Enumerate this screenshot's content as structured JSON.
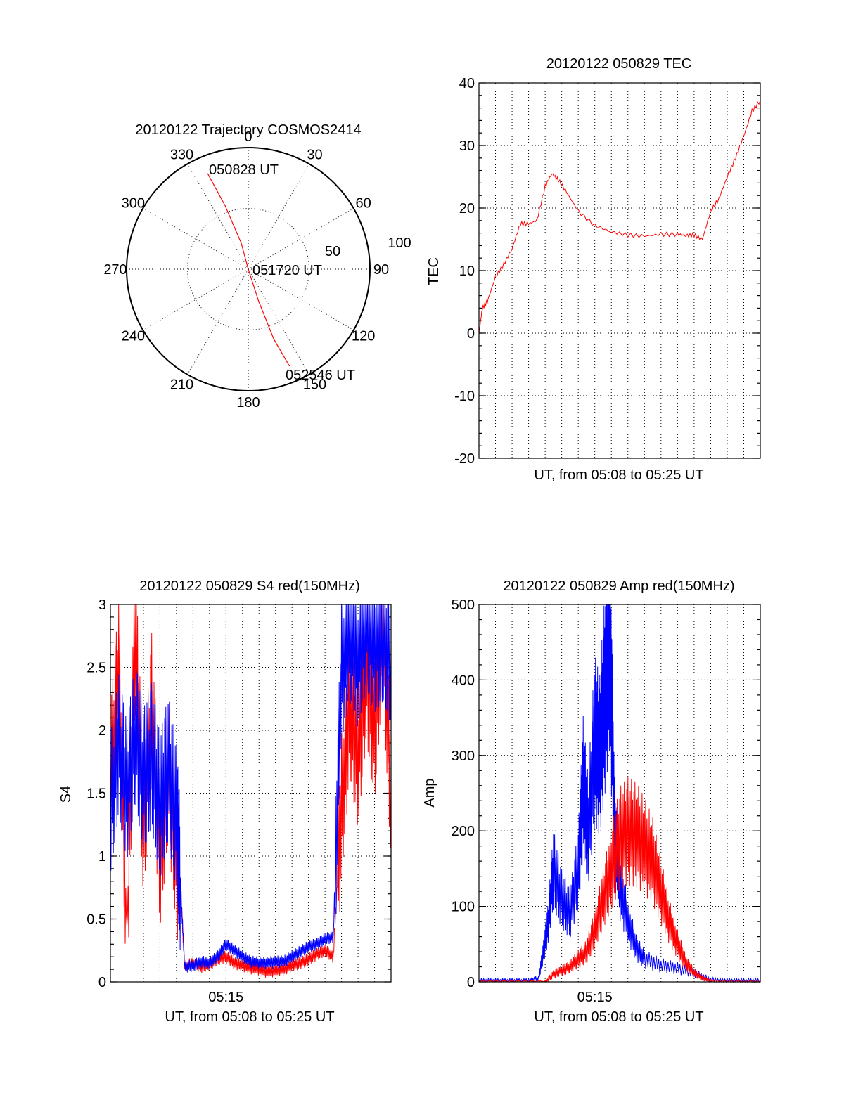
{
  "colors": {
    "red": "#ff0000",
    "blue": "#0000ff",
    "black": "#000000"
  },
  "chart_data": [
    {
      "id": "polar",
      "type": "scatter",
      "title": "20120122 Trajectory COSMOS2414",
      "azimuth_labels": [
        "0",
        "30",
        "60",
        "90",
        "120",
        "150",
        "180",
        "210",
        "240",
        "270",
        "300",
        "330"
      ],
      "radial_labels": [
        "50",
        "100"
      ],
      "track": [
        {
          "az": 337,
          "el": 13
        },
        {
          "az": 340,
          "el": 40
        },
        {
          "az": 345,
          "el": 70
        },
        {
          "az": 160,
          "el": 90
        },
        {
          "az": 162,
          "el": 65
        },
        {
          "az": 160,
          "el": 35
        },
        {
          "az": 157,
          "el": 12
        }
      ],
      "annotations": [
        {
          "text": "050828 UT",
          "at": "start"
        },
        {
          "text": "051720 UT",
          "at": "center"
        },
        {
          "text": "052546 UT",
          "at": "end"
        }
      ]
    },
    {
      "id": "tec",
      "type": "line",
      "title": "20120122 050829 TEC",
      "ylabel": "TEC",
      "xlabel": "UT, from 05:08 to 05:25 UT",
      "xlim": [
        0,
        17
      ],
      "ylim": [
        -20,
        40
      ],
      "yticks": [
        "-20",
        "-10",
        "0",
        "10",
        "20",
        "30",
        "40"
      ],
      "series": [
        {
          "name": "TEC",
          "color": "red",
          "x": [
            0,
            0.2,
            0.5,
            1.0,
            1.5,
            2.0,
            2.5,
            3.0,
            3.5,
            4.0,
            4.4,
            4.8,
            5.3,
            6.0,
            7.0,
            8.0,
            9.0,
            10.0,
            11.0,
            12.0,
            12.5,
            13.0,
            13.5,
            14.0,
            14.5,
            15.0,
            15.5,
            16.0,
            16.5,
            17.0
          ],
          "y": [
            0,
            4,
            5,
            9,
            11,
            13.5,
            17.5,
            17.5,
            18,
            23.5,
            25.5,
            24.5,
            22.5,
            19.5,
            17.2,
            16.2,
            15.7,
            15.5,
            15.8,
            15.8,
            15.6,
            15.7,
            15.0,
            19.5,
            21.5,
            25,
            28,
            31.5,
            35.5,
            37.2
          ]
        }
      ]
    },
    {
      "id": "s4",
      "type": "line",
      "title": "20120122 050829 S4 red(150MHz)",
      "ylabel": "S4",
      "xlabel": "UT, from 05:08 to 05:25 UT",
      "xlim": [
        0,
        17
      ],
      "ylim": [
        0,
        3
      ],
      "yticks": [
        "0",
        "0.5",
        "1",
        "1.5",
        "2",
        "2.5",
        "3"
      ],
      "xticks": [
        {
          "value": 7,
          "label": "05:15"
        }
      ],
      "series": [
        {
          "name": "red",
          "color": "red",
          "x": [
            0,
            0.5,
            1.0,
            1.5,
            2.0,
            2.5,
            3.0,
            3.5,
            4.0,
            4.3,
            4.5,
            5.0,
            5.5,
            6.0,
            6.5,
            7.0,
            7.5,
            8.0,
            8.5,
            9.0,
            9.5,
            10.0,
            10.5,
            11.0,
            11.5,
            12.0,
            12.5,
            13.0,
            13.5,
            14.0,
            14.5,
            15.0,
            15.5,
            16.0,
            16.5,
            17.0
          ],
          "y": [
            1.6,
            2.5,
            0.4,
            2.8,
            1.2,
            2.2,
            1.0,
            1.7,
            1.0,
            0.6,
            0.12,
            0.15,
            0.12,
            0.14,
            0.18,
            0.2,
            0.15,
            0.13,
            0.11,
            0.1,
            0.08,
            0.09,
            0.1,
            0.13,
            0.15,
            0.18,
            0.22,
            0.25,
            0.2,
            1.4,
            2.2,
            1.8,
            2.5,
            2.0,
            2.9,
            1.5
          ]
        },
        {
          "name": "blue",
          "color": "blue",
          "x": [
            0,
            0.5,
            1.0,
            1.5,
            2.0,
            2.5,
            3.0,
            3.5,
            4.0,
            4.2,
            4.5,
            5.0,
            5.5,
            6.0,
            6.5,
            7.0,
            7.5,
            8.0,
            8.5,
            9.0,
            9.5,
            10.0,
            10.5,
            11.0,
            11.5,
            12.0,
            12.5,
            13.0,
            13.5,
            14.0,
            14.5,
            15.0,
            15.5,
            16.0,
            16.5,
            17.0
          ],
          "y": [
            1.4,
            1.9,
            1.5,
            2.0,
            1.6,
            1.8,
            1.4,
            1.7,
            1.3,
            0.9,
            0.12,
            0.13,
            0.16,
            0.15,
            0.2,
            0.3,
            0.25,
            0.2,
            0.16,
            0.15,
            0.15,
            0.16,
            0.16,
            0.2,
            0.24,
            0.28,
            0.3,
            0.34,
            0.36,
            2.5,
            2.8,
            2.6,
            2.9,
            2.7,
            2.8,
            2.6
          ]
        }
      ]
    },
    {
      "id": "amp",
      "type": "line",
      "title": "20120122 050829 Amp red(150MHz)",
      "ylabel": "Amp",
      "xlabel": "UT, from 05:08 to 05:25 UT",
      "xlim": [
        0,
        17
      ],
      "ylim": [
        0,
        500
      ],
      "yticks": [
        "0",
        "100",
        "200",
        "300",
        "400",
        "500"
      ],
      "xticks": [
        {
          "value": 7,
          "label": "05:15"
        }
      ],
      "series": [
        {
          "name": "blue",
          "color": "blue",
          "x": [
            0,
            1,
            2,
            3,
            3.6,
            3.9,
            4.2,
            4.5,
            5.0,
            5.5,
            6.0,
            6.3,
            6.6,
            7.0,
            7.3,
            7.6,
            7.9,
            8.2,
            8.5,
            9.0,
            9.5,
            10.0,
            11.0,
            12.0,
            13.0,
            14.0,
            15.0,
            16.0,
            17.0
          ],
          "y": [
            2,
            2,
            2,
            2,
            5,
            40,
            80,
            150,
            110,
            90,
            150,
            260,
            200,
            320,
            300,
            380,
            480,
            200,
            130,
            80,
            45,
            30,
            22,
            18,
            12,
            3,
            2,
            2,
            2
          ]
        },
        {
          "name": "red",
          "color": "red",
          "x": [
            0,
            1,
            2,
            3,
            4,
            4.5,
            5.0,
            5.5,
            6.0,
            6.5,
            7.0,
            7.5,
            8.0,
            8.5,
            9.0,
            9.5,
            10.0,
            10.5,
            11.0,
            11.5,
            12.0,
            12.5,
            13.0,
            13.5,
            14.0,
            15.0,
            16.0,
            17.0
          ],
          "y": [
            0,
            0,
            0,
            0,
            0,
            10,
            15,
            20,
            30,
            40,
            70,
            110,
            150,
            190,
            200,
            195,
            180,
            160,
            120,
            80,
            50,
            25,
            12,
            5,
            1,
            0,
            0,
            0
          ]
        }
      ]
    }
  ]
}
